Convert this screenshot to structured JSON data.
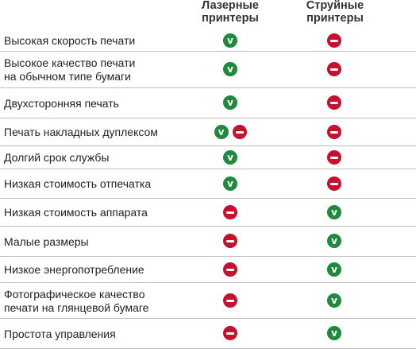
{
  "headers": {
    "laser": [
      "Лазерные",
      "принтеры"
    ],
    "inkjet": [
      "Струйные",
      "принтеры"
    ]
  },
  "marks": {
    "yes_glyph": "v",
    "yes_color": "#1f8a3b",
    "no_color": "#c8102e",
    "yes_icon": "check-circle-icon",
    "no_icon": "minus-circle-icon"
  },
  "rows": [
    {
      "label": [
        "Высокая скорость печати"
      ],
      "laser": [
        "yes"
      ],
      "inkjet": [
        "no"
      ]
    },
    {
      "label": [
        "Высокое качество печати",
        "на обычном типе бумаги"
      ],
      "laser": [
        "yes"
      ],
      "inkjet": [
        "no"
      ]
    },
    {
      "label": [
        "Двухсторонняя печать"
      ],
      "laser": [
        "yes"
      ],
      "inkjet": [
        "no"
      ]
    },
    {
      "label": [
        "Печать накладных дуплексом"
      ],
      "laser": [
        "yes",
        "no"
      ],
      "inkjet": [
        "no"
      ]
    },
    {
      "label": [
        "Долгий срок службы"
      ],
      "laser": [
        "yes"
      ],
      "inkjet": [
        "no"
      ]
    },
    {
      "label": [
        "Низкая стоимость отпечатка"
      ],
      "laser": [
        "yes"
      ],
      "inkjet": [
        "no"
      ]
    },
    {
      "label": [
        "Низкая стоимость аппарата"
      ],
      "laser": [
        "no"
      ],
      "inkjet": [
        "yes"
      ]
    },
    {
      "label": [
        "Малые размеры"
      ],
      "laser": [
        "no"
      ],
      "inkjet": [
        "yes"
      ]
    },
    {
      "label": [
        "Низкое энергопотребление"
      ],
      "laser": [
        "no"
      ],
      "inkjet": [
        "yes"
      ]
    },
    {
      "label": [
        "Фотографическое качество",
        "печати на глянцевой бумаге"
      ],
      "laser": [
        "no"
      ],
      "inkjet": [
        "yes"
      ]
    },
    {
      "label": [
        "Простота управления"
      ],
      "laser": [
        "no"
      ],
      "inkjet": [
        "yes"
      ]
    }
  ]
}
